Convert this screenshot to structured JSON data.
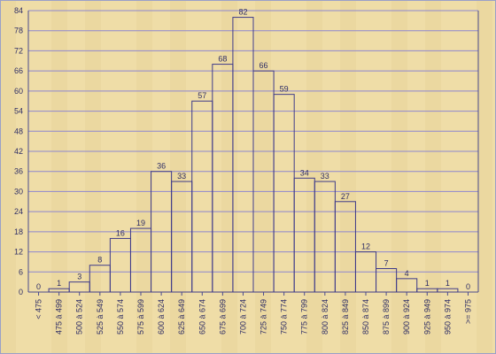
{
  "chart_data": {
    "type": "bar",
    "categories": [
      "< 475",
      "475 à 499",
      "500 à 524",
      "525 à 549",
      "550 à 574",
      "575 à 599",
      "600 à 624",
      "625 à 649",
      "650 à 674",
      "675 à 699",
      "700 à 724",
      "725 à 749",
      "750 à 774",
      "775 à 799",
      "800 à 824",
      "825 à 849",
      "850 à 874",
      "875 à 899",
      "900 à 924",
      "925 à 949",
      "950 à 974",
      ">= 975"
    ],
    "values": [
      0,
      1,
      3,
      8,
      16,
      19,
      36,
      33,
      57,
      68,
      82,
      66,
      59,
      34,
      33,
      27,
      12,
      7,
      4,
      1,
      1,
      0
    ],
    "yticks": [
      0,
      6,
      12,
      18,
      24,
      30,
      36,
      42,
      48,
      54,
      60,
      66,
      72,
      78,
      84
    ],
    "ylim": [
      0,
      84
    ],
    "gridlines": true,
    "data_labels": true,
    "colors": {
      "background": "#efdda7",
      "grid": "#8e86cf",
      "bar_outline": "#3f3b8a",
      "text": "#2f2e66"
    }
  }
}
